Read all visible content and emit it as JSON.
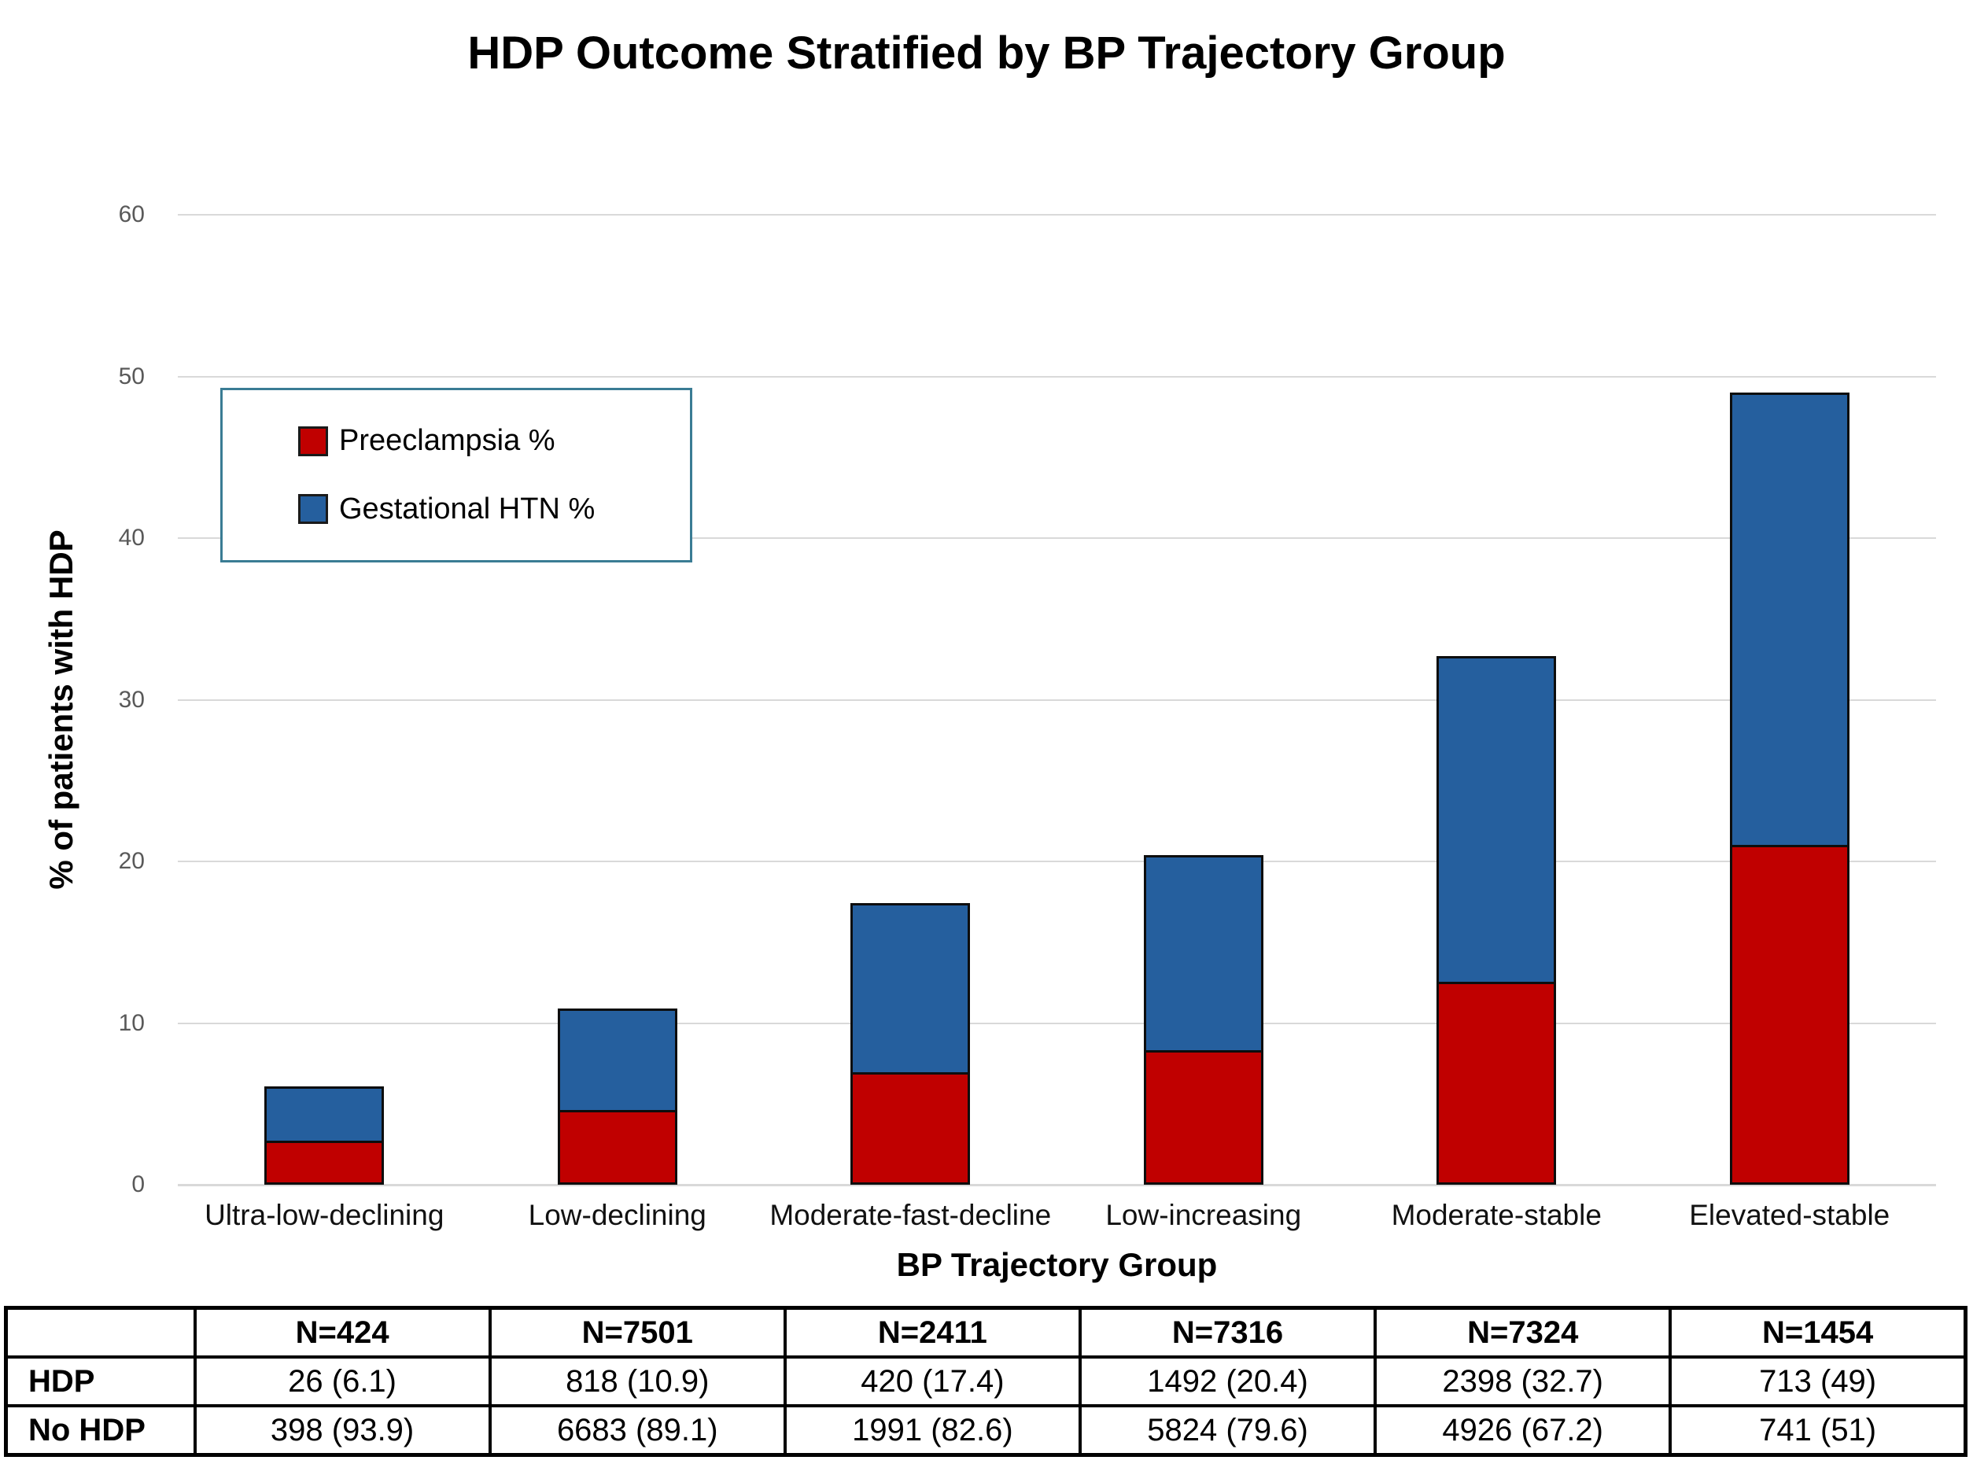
{
  "title": "HDP Outcome Stratified by BP Trajectory Group",
  "chart_data": {
    "type": "bar",
    "subtype": "stacked",
    "categories": [
      "Ultra-low-declining",
      "Low-declining",
      "Moderate-fast-decline",
      "Low-increasing",
      "Moderate-stable",
      "Elevated-stable"
    ],
    "series": [
      {
        "name": "Preeclampsia %",
        "color": "#c00000",
        "values": [
          2.6,
          4.5,
          6.8,
          8.2,
          12.4,
          20.9
        ]
      },
      {
        "name": "Gestational HTN %",
        "color": "#255f9e",
        "values": [
          3.5,
          6.4,
          10.6,
          12.2,
          20.3,
          28.1
        ]
      }
    ],
    "stack_totals_pct": [
      6.1,
      10.9,
      17.4,
      20.4,
      32.7,
      49
    ],
    "xlabel": "BP Trajectory Group",
    "ylabel": "% of patients with HDP",
    "ylim": [
      0,
      60
    ],
    "ytick_step": 10,
    "yticks": [
      0,
      10,
      20,
      30,
      40,
      50,
      60
    ],
    "grid": true,
    "gridline_color": "#d9d9d9",
    "legend_position": "upper-left-inside",
    "legend_border_color": "#3a7c94"
  },
  "table": {
    "corner_label": "",
    "columns": [
      "N=424",
      "N=7501",
      "N=2411",
      "N=7316",
      "N=7324",
      "N=1454"
    ],
    "rows": [
      {
        "label": "HDP",
        "values": [
          "26 (6.1)",
          "818 (10.9)",
          "420 (17.4)",
          "1492 (20.4)",
          "2398 (32.7)",
          "713 (49)"
        ]
      },
      {
        "label": "No HDP",
        "values": [
          "398 (93.9)",
          "6683 (89.1)",
          "1991 (82.6)",
          "5824 (79.6)",
          "4926 (67.2)",
          "741 (51)"
        ]
      }
    ]
  }
}
